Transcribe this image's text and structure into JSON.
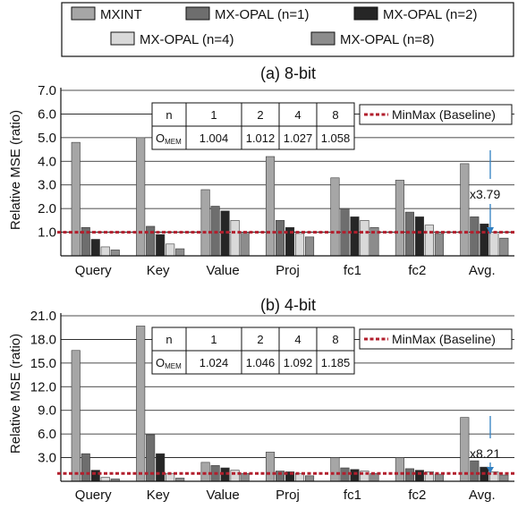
{
  "legend": {
    "series": [
      {
        "name": "MXINT",
        "color": "#a6a6a6"
      },
      {
        "name": "MX-OPAL (n=1)",
        "color": "#6e6e6e"
      },
      {
        "name": "MX-OPAL (n=2)",
        "color": "#262626"
      },
      {
        "name": "MX-OPAL (n=4)",
        "color": "#d9d9d9"
      },
      {
        "name": "MX-OPAL (n=8)",
        "color": "#8c8c8c"
      }
    ]
  },
  "chart_data": [
    {
      "type": "bar",
      "title": "(a) 8-bit",
      "ylabel": "Relative MSE (ratio)",
      "ylim": [
        0,
        7.0
      ],
      "yticks": [
        "7.0",
        "6.0",
        "5.0",
        "4.0",
        "3.0",
        "2.0",
        "1.0"
      ],
      "categories": [
        "Query",
        "Key",
        "Value",
        "Proj",
        "fc1",
        "fc2",
        "Avg."
      ],
      "series": [
        {
          "name": "MXINT",
          "values": [
            4.8,
            5.0,
            2.8,
            4.2,
            3.3,
            3.2,
            3.9
          ]
        },
        {
          "name": "MX-OPAL (n=1)",
          "values": [
            1.2,
            1.25,
            2.1,
            1.5,
            2.0,
            1.85,
            1.65
          ]
        },
        {
          "name": "MX-OPAL (n=2)",
          "values": [
            0.7,
            0.9,
            1.9,
            1.2,
            1.65,
            1.65,
            1.35
          ]
        },
        {
          "name": "MX-OPAL (n=4)",
          "values": [
            0.38,
            0.5,
            1.5,
            0.95,
            1.5,
            1.3,
            1.0
          ]
        },
        {
          "name": "MX-OPAL (n=8)",
          "values": [
            0.25,
            0.3,
            1.0,
            0.8,
            1.2,
            0.95,
            0.75
          ]
        }
      ],
      "baseline": {
        "label": "MinMax (Baseline)",
        "value": 1.0,
        "color": "#b21f2d"
      },
      "annotation": "x3.79",
      "table": {
        "header": [
          "n",
          "1",
          "2",
          "4",
          "8"
        ],
        "row_label": "O",
        "row_label_sub": "MEM",
        "row": [
          "1.004",
          "1.012",
          "1.027",
          "1.058"
        ]
      }
    },
    {
      "type": "bar",
      "title": "(b) 4-bit",
      "ylabel": "Relative MSE (ratio)",
      "ylim": [
        0,
        21.0
      ],
      "yticks": [
        "21.0",
        "18.0",
        "15.0",
        "12.0",
        "9.0",
        "6.0",
        "3.0"
      ],
      "categories": [
        "Query",
        "Key",
        "Value",
        "Proj",
        "fc1",
        "fc2",
        "Avg."
      ],
      "series": [
        {
          "name": "MXINT",
          "values": [
            16.6,
            19.7,
            2.4,
            3.7,
            3.0,
            3.0,
            8.1
          ]
        },
        {
          "name": "MX-OPAL (n=1)",
          "values": [
            3.5,
            5.9,
            2.0,
            1.3,
            1.7,
            1.6,
            2.6
          ]
        },
        {
          "name": "MX-OPAL (n=2)",
          "values": [
            1.4,
            3.5,
            1.7,
            1.2,
            1.5,
            1.4,
            1.8
          ]
        },
        {
          "name": "MX-OPAL (n=4)",
          "values": [
            0.5,
            1.0,
            1.4,
            1.0,
            1.3,
            1.2,
            1.2
          ]
        },
        {
          "name": "MX-OPAL (n=8)",
          "values": [
            0.3,
            0.4,
            1.0,
            0.7,
            1.0,
            0.9,
            0.8
          ]
        }
      ],
      "baseline": {
        "label": "MinMax (Baseline)",
        "value": 1.0,
        "color": "#b21f2d"
      },
      "annotation": "x8.21",
      "table": {
        "header": [
          "n",
          "1",
          "2",
          "4",
          "8"
        ],
        "row_label": "O",
        "row_label_sub": "MEM",
        "row": [
          "1.024",
          "1.046",
          "1.092",
          "1.185"
        ]
      }
    }
  ]
}
